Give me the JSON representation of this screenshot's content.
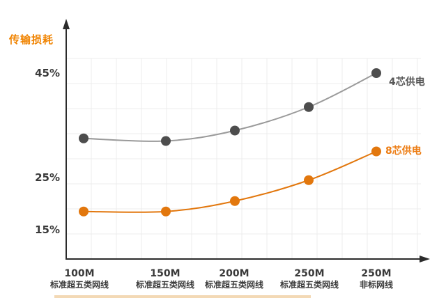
{
  "chart_data": {
    "type": "line",
    "title": "传输损耗",
    "ylabel": "传输损耗",
    "xlabel": "",
    "categories": [
      "100M 标准超五类网线",
      "150M 标准超五类网线",
      "200M 标准超五类网线",
      "250M 标准超五类网线",
      "250M 非标网线"
    ],
    "categories_line1": [
      "100M",
      "150M",
      "200M",
      "250M",
      "250M"
    ],
    "categories_line2": [
      "标准超五类网线",
      "标准超五类网线",
      "标准超五类网线",
      "标准超五类网线",
      "非标网线"
    ],
    "y_tick_labels": [
      "45%",
      "25%",
      "15%"
    ],
    "y_ticks": [
      45,
      25,
      15
    ],
    "ylim": [
      10,
      50
    ],
    "grid": true,
    "legend_position": "line-end",
    "series": [
      {
        "name": "4芯供电",
        "values": [
          32.5,
          32,
          34,
          38.5,
          45
        ],
        "color": "#9a9a9a",
        "dot_color": "#4d4d4d",
        "label_color": "#555555"
      },
      {
        "name": "8芯供电",
        "values": [
          18.5,
          18.5,
          20.5,
          24.5,
          30
        ],
        "color": "#e2770d",
        "dot_color": "#e2770d",
        "label_color": "#ed7d14"
      }
    ]
  }
}
